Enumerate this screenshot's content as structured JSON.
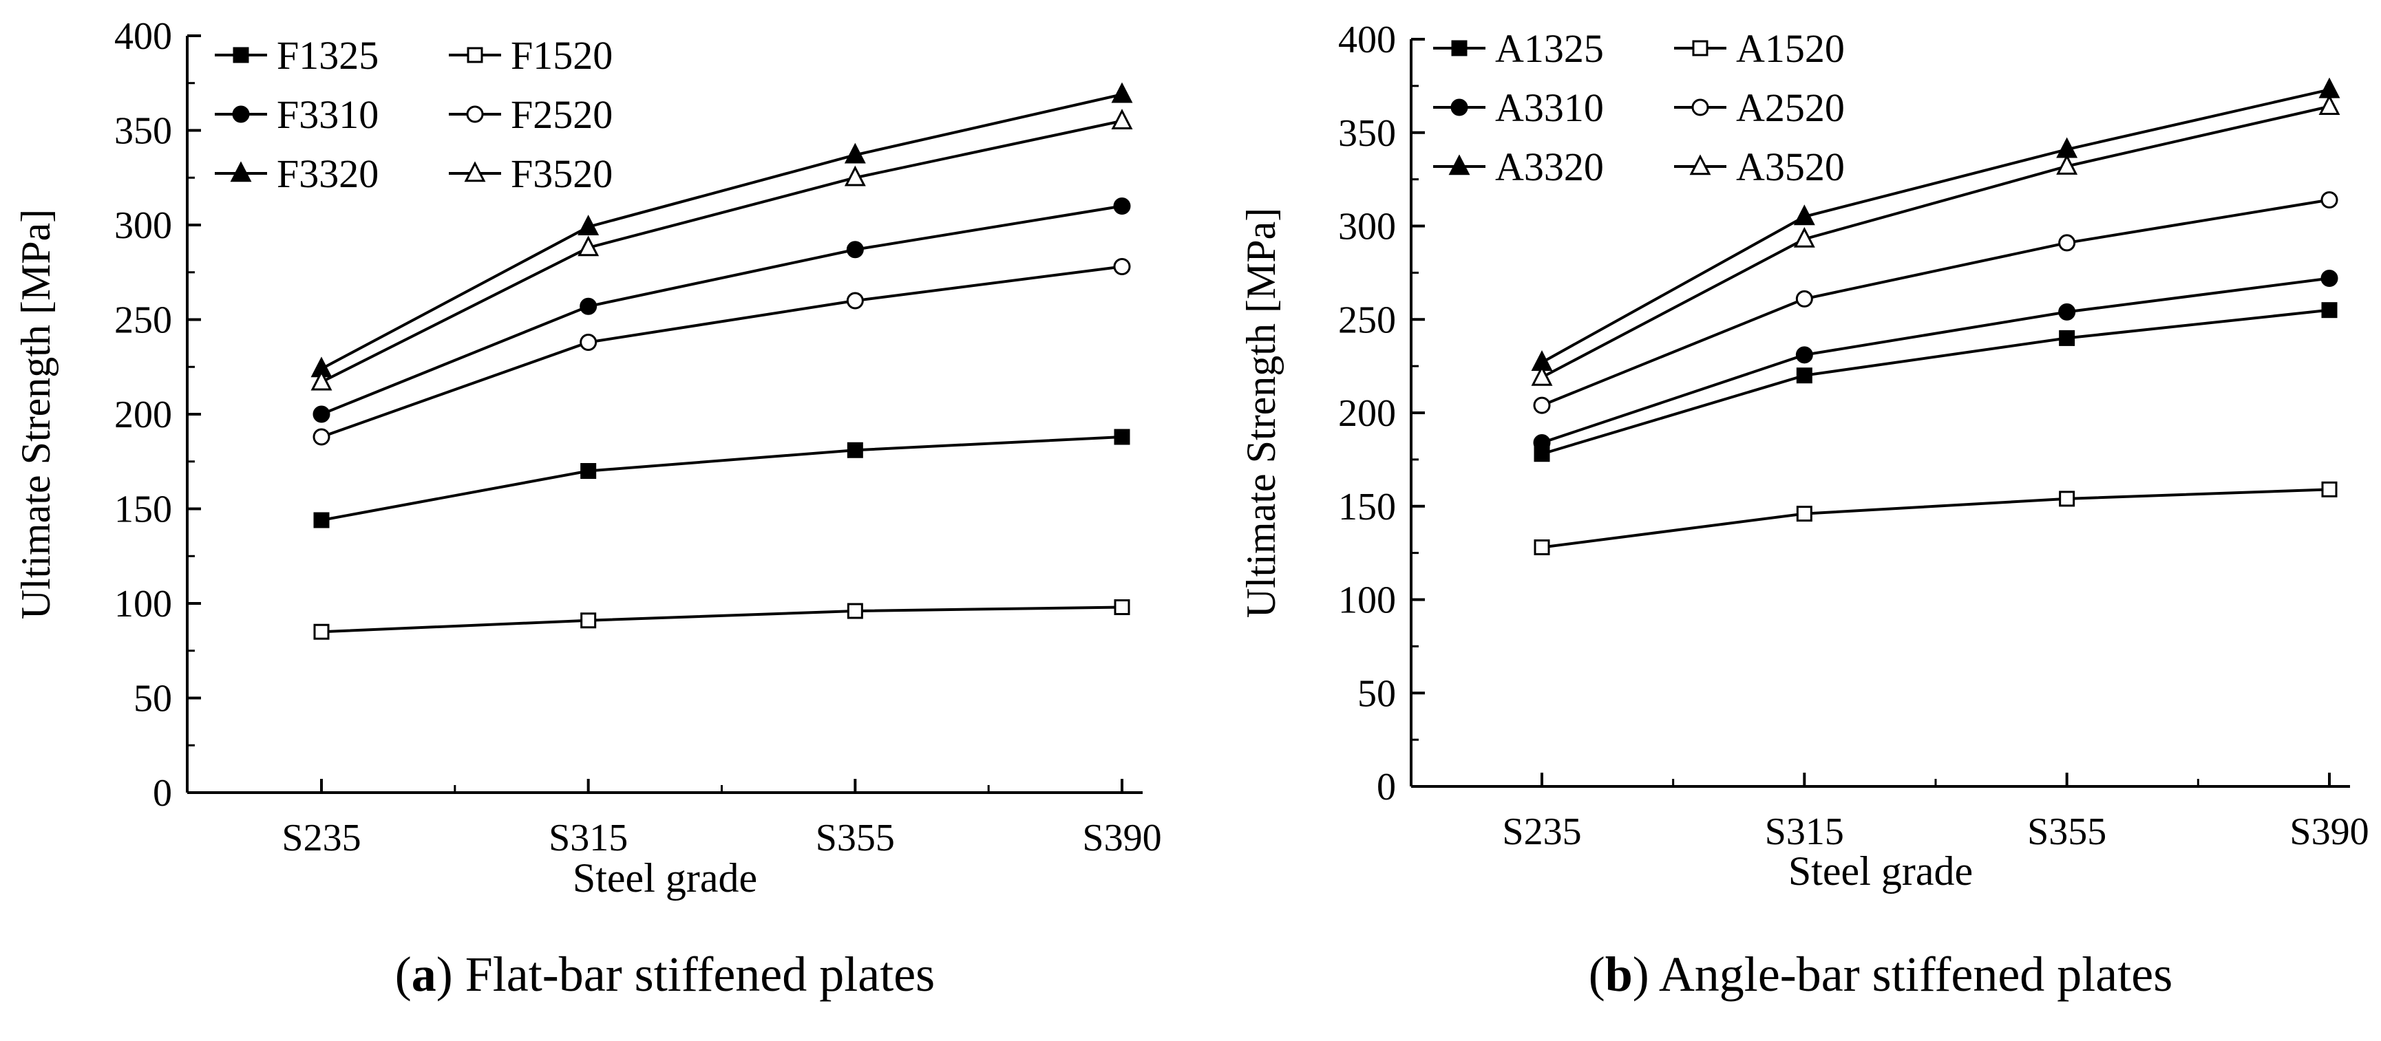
{
  "chart_data": [
    {
      "type": "line",
      "caption_letter": "a",
      "caption_text": "Flat-bar stiffened plates",
      "xlabel": "Steel grade",
      "ylabel": "Ultimate Strength [MPa]",
      "categories": [
        "S235",
        "S315",
        "S355",
        "S390"
      ],
      "ylim": [
        0,
        400
      ],
      "yticks": [
        0,
        50,
        100,
        150,
        200,
        250,
        300,
        350,
        400
      ],
      "legend_position": "top-left",
      "series": [
        {
          "name": "F1325",
          "marker": "square",
          "filled": true,
          "values": [
            144,
            170,
            181,
            188
          ]
        },
        {
          "name": "F1520",
          "marker": "square",
          "filled": false,
          "values": [
            85,
            91,
            96,
            98
          ]
        },
        {
          "name": "F3310",
          "marker": "circle",
          "filled": true,
          "values": [
            200,
            257,
            287,
            310
          ]
        },
        {
          "name": "F2520",
          "marker": "circle",
          "filled": false,
          "values": [
            188,
            238,
            260,
            278
          ]
        },
        {
          "name": "F3320",
          "marker": "triangle",
          "filled": true,
          "values": [
            224,
            299,
            337,
            369
          ]
        },
        {
          "name": "F3520",
          "marker": "triangle",
          "filled": false,
          "values": [
            217,
            288,
            325,
            355
          ]
        }
      ]
    },
    {
      "type": "line",
      "caption_letter": "b",
      "caption_text": "Angle-bar stiffened plates",
      "xlabel": "Steel grade",
      "ylabel": "Ultimate Strength [MPa]",
      "categories": [
        "S235",
        "S315",
        "S355",
        "S390"
      ],
      "ylim": [
        0,
        400
      ],
      "yticks": [
        0,
        50,
        100,
        150,
        200,
        250,
        300,
        350,
        400
      ],
      "legend_position": "top-left",
      "series": [
        {
          "name": "A1325",
          "marker": "square",
          "filled": true,
          "values": [
            178,
            220,
            240,
            255
          ]
        },
        {
          "name": "A1520",
          "marker": "square",
          "filled": false,
          "values": [
            128,
            146,
            154,
            159
          ]
        },
        {
          "name": "A3310",
          "marker": "circle",
          "filled": true,
          "values": [
            184,
            231,
            254,
            272
          ]
        },
        {
          "name": "A2520",
          "marker": "circle",
          "filled": false,
          "values": [
            204,
            261,
            291,
            314
          ]
        },
        {
          "name": "A3320",
          "marker": "triangle",
          "filled": true,
          "values": [
            227,
            305,
            341,
            373
          ]
        },
        {
          "name": "A3520",
          "marker": "triangle",
          "filled": false,
          "values": [
            219,
            293,
            332,
            364
          ]
        }
      ]
    }
  ]
}
